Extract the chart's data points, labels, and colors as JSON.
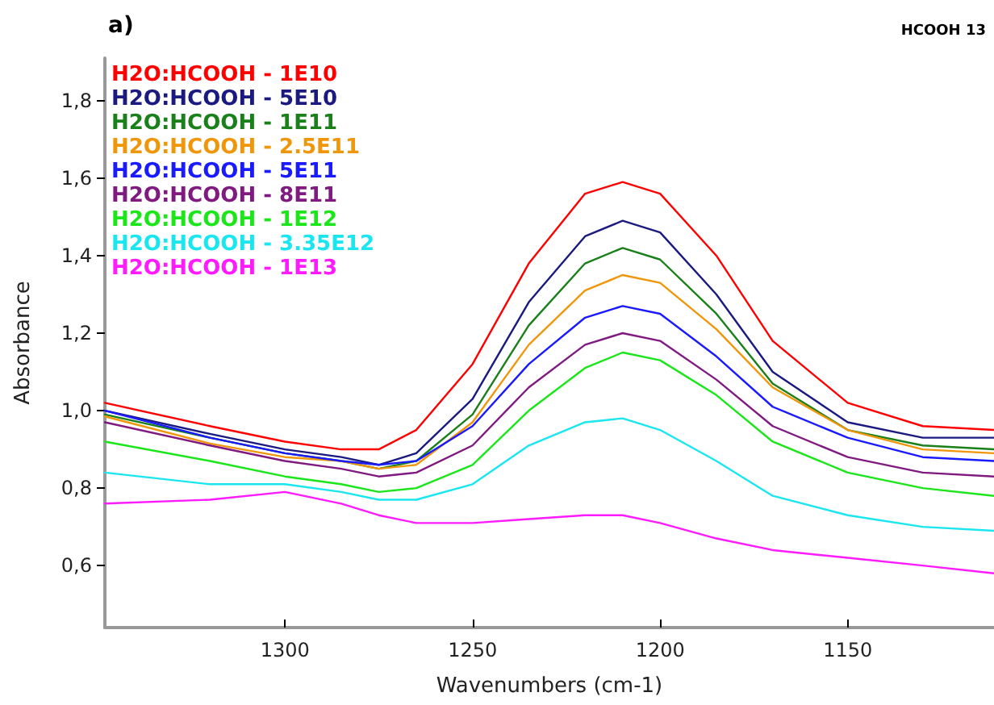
{
  "chart_data": {
    "type": "line",
    "title": "a)",
    "subtitle": "HCOOH 13",
    "xlabel": "Wavenumbers (cm-1)",
    "ylabel": "Absorbance",
    "x": [
      1348,
      1320,
      1300,
      1285,
      1275,
      1265,
      1250,
      1235,
      1220,
      1210,
      1200,
      1185,
      1170,
      1150,
      1130,
      1111
    ],
    "series": [
      {
        "name": "H2O:HCOOH - 1E10",
        "color": "#ff0000",
        "values": [
          1.02,
          0.96,
          0.92,
          0.9,
          0.9,
          0.95,
          1.12,
          1.38,
          1.56,
          1.59,
          1.56,
          1.4,
          1.18,
          1.02,
          0.96,
          0.95
        ]
      },
      {
        "name": "H2O:HCOOH - 5E10",
        "color": "#1a1a80",
        "values": [
          1.0,
          0.94,
          0.9,
          0.88,
          0.86,
          0.89,
          1.03,
          1.28,
          1.45,
          1.49,
          1.46,
          1.3,
          1.1,
          0.97,
          0.93,
          0.93
        ]
      },
      {
        "name": "H2O:HCOOH - 1E11",
        "color": "#1a801a",
        "values": [
          0.99,
          0.93,
          0.89,
          0.87,
          0.85,
          0.87,
          0.99,
          1.22,
          1.38,
          1.42,
          1.39,
          1.25,
          1.07,
          0.95,
          0.91,
          0.9
        ]
      },
      {
        "name": "H2O:HCOOH - 2.5E11",
        "color": "#f0960a",
        "values": [
          0.985,
          0.915,
          0.88,
          0.87,
          0.85,
          0.86,
          0.97,
          1.17,
          1.31,
          1.35,
          1.33,
          1.21,
          1.06,
          0.95,
          0.9,
          0.89
        ]
      },
      {
        "name": "H2O:HCOOH - 5E11",
        "color": "#1a1aff",
        "values": [
          1.0,
          0.93,
          0.89,
          0.87,
          0.86,
          0.87,
          0.96,
          1.12,
          1.24,
          1.27,
          1.25,
          1.14,
          1.01,
          0.93,
          0.88,
          0.87
        ]
      },
      {
        "name": "H2O:HCOOH - 8E11",
        "color": "#801a80",
        "values": [
          0.97,
          0.91,
          0.87,
          0.85,
          0.83,
          0.84,
          0.91,
          1.06,
          1.17,
          1.2,
          1.18,
          1.08,
          0.96,
          0.88,
          0.84,
          0.83
        ]
      },
      {
        "name": "H2O:HCOOH - 1E12",
        "color": "#1ae61a",
        "values": [
          0.92,
          0.87,
          0.83,
          0.81,
          0.79,
          0.8,
          0.86,
          1.0,
          1.11,
          1.15,
          1.13,
          1.04,
          0.92,
          0.84,
          0.8,
          0.78
        ]
      },
      {
        "name": "H2O:HCOOH - 3.35E12",
        "color": "#1ae6f0",
        "values": [
          0.84,
          0.81,
          0.81,
          0.79,
          0.77,
          0.77,
          0.81,
          0.91,
          0.97,
          0.98,
          0.95,
          0.87,
          0.78,
          0.73,
          0.7,
          0.69
        ]
      },
      {
        "name": "H2O:HCOOH - 1E13",
        "color": "#ff1aff",
        "values": [
          0.76,
          0.77,
          0.79,
          0.76,
          0.73,
          0.71,
          0.71,
          0.72,
          0.73,
          0.73,
          0.71,
          0.67,
          0.64,
          0.62,
          0.6,
          0.58
        ]
      }
    ],
    "xlim": [
      1348,
      1111
    ],
    "xticks": [
      1300,
      1250,
      1200,
      1150
    ],
    "ylim": [
      0.44,
      1.91
    ],
    "yticks": [
      {
        "value": 0.6,
        "label": "0,6"
      },
      {
        "value": 0.8,
        "label": "0,8"
      },
      {
        "value": 1.0,
        "label": "1,0"
      },
      {
        "value": 1.2,
        "label": "1,2"
      },
      {
        "value": 1.4,
        "label": "1,4"
      },
      {
        "value": 1.6,
        "label": "1,6"
      },
      {
        "value": 1.8,
        "label": "1,8"
      }
    ],
    "grid": false,
    "legend": "top left",
    "marker": "none",
    "line_style": "solid"
  }
}
